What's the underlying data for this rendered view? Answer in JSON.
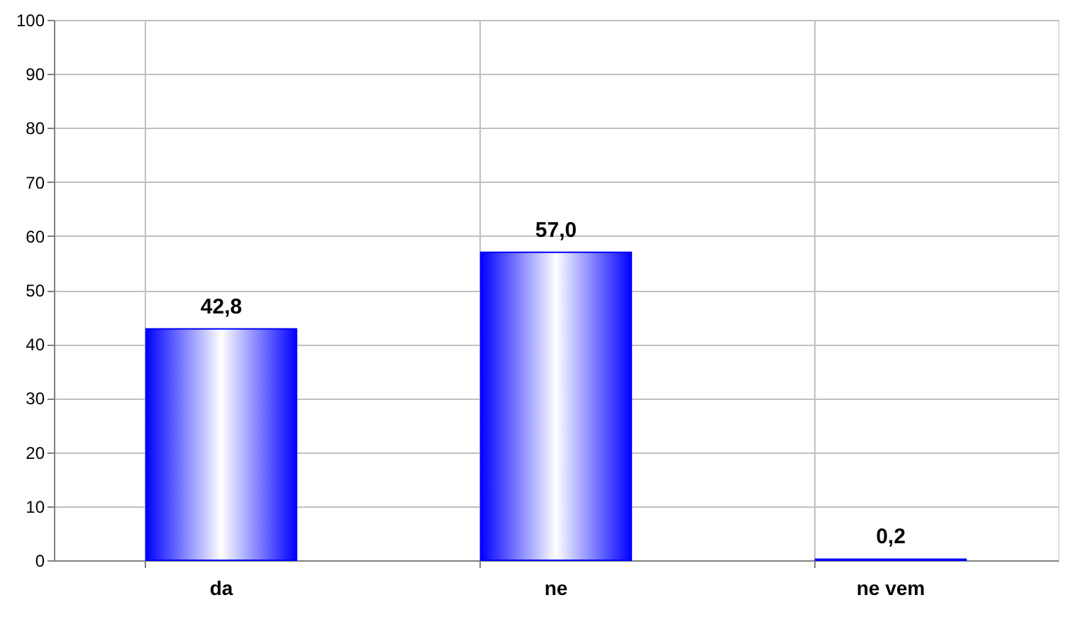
{
  "chart_data": {
    "type": "bar",
    "categories": [
      "da",
      "ne",
      "ne vem"
    ],
    "values": [
      42.8,
      57.0,
      0.2
    ],
    "color": "#0000ff",
    "value_labels": [
      "42,8",
      "57,0",
      "0,2"
    ],
    "ylim": [
      0,
      100
    ],
    "yticks": [
      0,
      10,
      20,
      30,
      40,
      50,
      60,
      70,
      80,
      90,
      100
    ],
    "grid": true
  }
}
